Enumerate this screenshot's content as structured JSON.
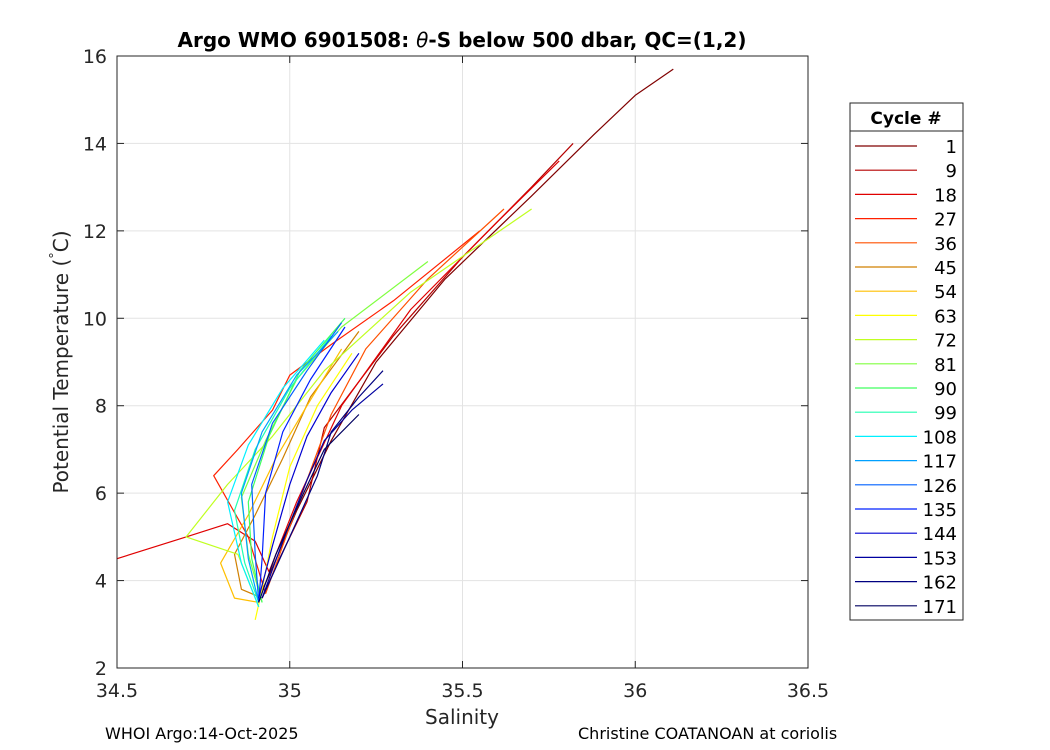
{
  "chart_data": {
    "type": "line",
    "title": "Argo WMO 6901508: θ-S below 500 dbar,  QC=(1,2)",
    "title_parts": {
      "prefix": "Argo WMO 6901508: ",
      "theta": "θ",
      "suffix": "-S below 500 dbar,  QC=(1,2)"
    },
    "xlabel": "Salinity",
    "ylabel": "Potential Temperature (°C)",
    "ylabel_parts": {
      "text": "Potential Temperature (",
      "degree": "°",
      "unit": "C)"
    },
    "xlim": [
      34.5,
      36.5
    ],
    "ylim": [
      2,
      16
    ],
    "xticks": [
      34.5,
      35,
      35.5,
      36,
      36.5
    ],
    "xtick_labels": [
      "34.5",
      "35",
      "35.5",
      "36",
      "36.5"
    ],
    "yticks": [
      2,
      4,
      6,
      8,
      10,
      12,
      14,
      16
    ],
    "ytick_labels": [
      "2",
      "4",
      "6",
      "8",
      "10",
      "12",
      "14",
      "16"
    ],
    "grid": true,
    "legend": {
      "title": "Cycle #",
      "placement": "right-outside",
      "entries": [
        {
          "label": "1",
          "color": "#800000"
        },
        {
          "label": "9",
          "color": "#b50000"
        },
        {
          "label": "18",
          "color": "#e00000"
        },
        {
          "label": "27",
          "color": "#ff2000"
        },
        {
          "label": "36",
          "color": "#ff5000"
        },
        {
          "label": "45",
          "color": "#d08000"
        },
        {
          "label": "54",
          "color": "#ffbf00"
        },
        {
          "label": "63",
          "color": "#ffff00"
        },
        {
          "label": "72",
          "color": "#c0ff20"
        },
        {
          "label": "81",
          "color": "#80ff40"
        },
        {
          "label": "90",
          "color": "#40ff60"
        },
        {
          "label": "99",
          "color": "#20ffb0"
        },
        {
          "label": "108",
          "color": "#00f0ff"
        },
        {
          "label": "117",
          "color": "#00a0ff"
        },
        {
          "label": "126",
          "color": "#0060ff"
        },
        {
          "label": "135",
          "color": "#0020ff"
        },
        {
          "label": "144",
          "color": "#0000d0"
        },
        {
          "label": "153",
          "color": "#0000a0"
        },
        {
          "label": "162",
          "color": "#000080"
        },
        {
          "label": "171",
          "color": "#000060"
        }
      ]
    },
    "series": [
      {
        "color": "#800000",
        "x": [
          34.91,
          34.95,
          35.02,
          35.12,
          35.25,
          35.45,
          35.7,
          35.88,
          36.0,
          36.11
        ],
        "y": [
          3.6,
          4.3,
          5.6,
          7.2,
          9.0,
          10.9,
          12.8,
          14.2,
          15.1,
          15.7
        ]
      },
      {
        "color": "#b50000",
        "x": [
          34.92,
          34.97,
          35.05,
          35.1,
          35.3,
          35.5,
          35.7,
          35.82
        ],
        "y": [
          3.6,
          4.5,
          5.8,
          7.5,
          9.6,
          11.4,
          13.0,
          14.0
        ]
      },
      {
        "color": "#e00000",
        "x": [
          34.5,
          34.7,
          34.82,
          34.9,
          34.94,
          35.02,
          35.15,
          35.35,
          35.6,
          35.78
        ],
        "y": [
          4.5,
          5.0,
          5.3,
          4.9,
          4.2,
          5.8,
          8.0,
          10.2,
          12.2,
          13.6
        ]
      },
      {
        "color": "#ff2000",
        "x": [
          34.93,
          34.88,
          34.78,
          34.85,
          34.95,
          35.0,
          35.12,
          35.3,
          35.55
        ],
        "y": [
          3.7,
          5.0,
          6.4,
          7.0,
          7.9,
          8.7,
          9.4,
          10.4,
          12.0
        ]
      },
      {
        "color": "#ff5000",
        "x": [
          34.93,
          34.98,
          35.05,
          35.12,
          35.22,
          35.4,
          35.62
        ],
        "y": [
          3.7,
          4.8,
          6.3,
          7.8,
          9.3,
          10.9,
          12.5
        ]
      },
      {
        "color": "#d08000",
        "x": [
          34.92,
          34.86,
          34.84,
          34.9,
          34.98,
          35.06,
          35.2
        ],
        "y": [
          3.6,
          3.8,
          4.6,
          5.5,
          6.8,
          8.2,
          9.7
        ]
      },
      {
        "color": "#ffbf00",
        "x": [
          34.91,
          34.84,
          34.8,
          34.88,
          34.96,
          35.05,
          35.15
        ],
        "y": [
          3.5,
          3.6,
          4.4,
          5.5,
          6.8,
          8.0,
          9.3
        ]
      },
      {
        "color": "#ffff00",
        "x": [
          34.9,
          34.92,
          34.95,
          35.0,
          35.08,
          35.18
        ],
        "y": [
          3.1,
          3.8,
          5.0,
          6.6,
          8.0,
          9.2
        ]
      },
      {
        "color": "#c0ff20",
        "x": [
          34.91,
          34.85,
          34.7,
          34.82,
          34.95,
          35.1,
          35.35,
          35.7
        ],
        "y": [
          3.4,
          4.6,
          5.0,
          6.2,
          7.3,
          8.8,
          10.6,
          12.5
        ]
      },
      {
        "color": "#80ff40",
        "x": [
          34.92,
          34.88,
          34.86,
          34.93,
          35.02,
          35.15,
          35.4
        ],
        "y": [
          3.5,
          4.6,
          5.9,
          7.2,
          8.6,
          9.8,
          11.3
        ]
      },
      {
        "color": "#40ff60",
        "x": [
          34.92,
          34.89,
          34.88,
          34.94,
          35.03,
          35.16
        ],
        "y": [
          3.5,
          4.5,
          5.8,
          7.3,
          8.8,
          10.0
        ]
      },
      {
        "color": "#20ffb0",
        "x": [
          34.91,
          34.87,
          34.84,
          34.9,
          35.0,
          35.12
        ],
        "y": [
          3.5,
          4.4,
          5.6,
          7.0,
          8.4,
          9.6
        ]
      },
      {
        "color": "#00f0ff",
        "x": [
          34.91,
          34.86,
          34.82,
          34.88,
          34.98,
          35.1
        ],
        "y": [
          3.4,
          4.4,
          5.8,
          7.1,
          8.4,
          9.5
        ]
      },
      {
        "color": "#00a0ff",
        "x": [
          34.91,
          34.88,
          34.86,
          34.92,
          35.02,
          35.14
        ],
        "y": [
          3.5,
          4.5,
          6.0,
          7.4,
          8.7,
          9.7
        ]
      },
      {
        "color": "#0060ff",
        "x": [
          34.91,
          34.9,
          34.89,
          34.95,
          35.05,
          35.15
        ],
        "y": [
          3.5,
          4.6,
          6.2,
          7.6,
          8.8,
          9.9
        ]
      },
      {
        "color": "#0020ff",
        "x": [
          34.91,
          34.92,
          34.93,
          34.98,
          35.06,
          35.16
        ],
        "y": [
          3.5,
          4.5,
          6.0,
          7.4,
          8.6,
          9.8
        ]
      },
      {
        "color": "#0000d0",
        "x": [
          34.91,
          34.95,
          35.0,
          35.05,
          35.12,
          35.2
        ],
        "y": [
          3.6,
          4.8,
          6.2,
          7.3,
          8.3,
          9.2
        ]
      },
      {
        "color": "#0000a0",
        "x": [
          34.92,
          34.98,
          35.05,
          35.1,
          35.18,
          35.27
        ],
        "y": [
          3.6,
          4.9,
          6.3,
          7.2,
          7.9,
          8.5
        ]
      },
      {
        "color": "#000080",
        "x": [
          34.92,
          35.0,
          35.08,
          35.12,
          35.2,
          35.27
        ],
        "y": [
          3.6,
          5.0,
          6.4,
          7.4,
          8.2,
          8.8
        ]
      },
      {
        "color": "#000060",
        "x": [
          34.91,
          34.96,
          35.04,
          35.1,
          35.2
        ],
        "y": [
          3.5,
          4.6,
          6.0,
          7.0,
          7.8
        ]
      }
    ]
  },
  "footer": {
    "left": "WHOI Argo:14-Oct-2025",
    "right": "Christine COATANOAN at coriolis"
  }
}
